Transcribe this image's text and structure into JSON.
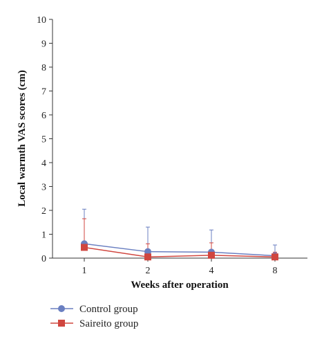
{
  "chart_data": {
    "type": "line",
    "categories": [
      "1",
      "2",
      "4",
      "8"
    ],
    "xlabel": "Weeks after operation",
    "ylabel": "Local warmth VAS scores (cm)",
    "ylim": [
      0,
      10
    ],
    "yticks": [
      0,
      1,
      2,
      3,
      4,
      5,
      6,
      7,
      8,
      9,
      10
    ],
    "grid": false,
    "legend_placement": "bottom-left",
    "series": [
      {
        "name": "Control group",
        "color": "#6a7fc1",
        "marker": "circle",
        "values": [
          0.6,
          0.27,
          0.25,
          0.1
        ],
        "error_upper": [
          1.45,
          1.03,
          0.93,
          0.45
        ]
      },
      {
        "name": "Saireito group",
        "color": "#d0463f",
        "marker": "square",
        "values": [
          0.45,
          0.05,
          0.12,
          0.05
        ],
        "error_upper": [
          1.2,
          0.55,
          0.52,
          0.2
        ]
      }
    ]
  }
}
